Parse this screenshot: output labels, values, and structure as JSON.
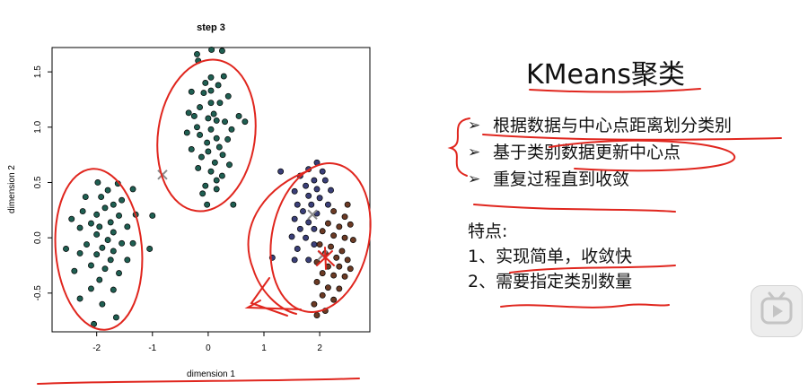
{
  "slide": {
    "title": "KMeans聚类",
    "bullets": [
      "根据数据与中心点距离划分类别",
      "基于类别数据更新中心点",
      "重复过程直到收敛"
    ],
    "bullet_marker": "➢",
    "features_heading": "特点:",
    "features": [
      "1、实现简单，收敛快",
      "2、需要指定类别数量"
    ]
  },
  "colors": {
    "cluster_1": "#1f5f52",
    "cluster_2": "#1f5f52",
    "cluster_3_blue": "#3a3f78",
    "cluster_3_brown": "#6b3a24",
    "annotation_red": "#e0261e",
    "centroid_mark": "#8a8a8a",
    "text": "#111111"
  },
  "player": {
    "icon": "play-icon"
  },
  "chart_data": {
    "type": "scatter",
    "title": "step 3",
    "xlabel": "dimension 1",
    "ylabel": "dimension 2",
    "xlim": [
      -2.8,
      2.9
    ],
    "ylim": [
      -0.85,
      1.72
    ],
    "xticks": [
      "-2",
      "-1",
      "0",
      "1",
      "2"
    ],
    "xtick_values": [
      -2,
      -1,
      0,
      1,
      2
    ],
    "yticks": [
      "-0.5",
      "0.0",
      "0.5",
      "1.0",
      "1.5"
    ],
    "ytick_values": [
      -0.5,
      0.0,
      0.5,
      1.0,
      1.5
    ],
    "grid": false,
    "centroid_marks": [
      {
        "x": -0.82,
        "y": 0.57
      },
      {
        "x": 1.87,
        "y": 0.21
      },
      {
        "x": 2.05,
        "y": -0.16
      }
    ],
    "series": [
      {
        "color_key": "cluster_1",
        "points": [
          [
            -0.2,
            1.66
          ],
          [
            0.06,
            1.7
          ],
          [
            0.25,
            1.69
          ],
          [
            -0.18,
            1.6
          ],
          [
            0.05,
            1.45
          ],
          [
            0.28,
            1.46
          ],
          [
            -0.05,
            1.4
          ],
          [
            0.18,
            1.38
          ],
          [
            0.05,
            1.33
          ],
          [
            -0.3,
            1.32
          ],
          [
            0.05,
            1.22
          ],
          [
            0.21,
            1.22
          ],
          [
            0.36,
            1.28
          ],
          [
            -0.15,
            1.18
          ],
          [
            0.1,
            1.12
          ],
          [
            0.55,
            1.1
          ],
          [
            0.66,
            1.05
          ],
          [
            -0.25,
            1.1
          ],
          [
            0.0,
            1.08
          ],
          [
            0.15,
            1.06
          ],
          [
            0.3,
            1.05
          ],
          [
            -0.2,
            1.0
          ],
          [
            0.05,
            0.98
          ],
          [
            0.42,
            0.98
          ],
          [
            -0.38,
            0.95
          ],
          [
            -0.15,
            0.93
          ],
          [
            0.15,
            0.9
          ],
          [
            0.35,
            0.89
          ],
          [
            -0.02,
            0.86
          ],
          [
            0.2,
            0.82
          ],
          [
            -0.3,
            0.8
          ],
          [
            0.0,
            0.78
          ],
          [
            0.26,
            0.75
          ],
          [
            -0.12,
            0.73
          ],
          [
            0.12,
            0.68
          ],
          [
            0.38,
            0.66
          ],
          [
            -0.18,
            0.63
          ],
          [
            0.05,
            0.6
          ],
          [
            0.25,
            0.56
          ],
          [
            0.15,
            0.52
          ],
          [
            -0.05,
            0.47
          ],
          [
            0.15,
            0.44
          ],
          [
            -0.1,
            0.4
          ],
          [
            -0.02,
            0.3
          ],
          [
            0.45,
            0.3
          ],
          [
            -0.35,
            1.13
          ],
          [
            -0.08,
            1.31
          ]
        ]
      },
      {
        "color_key": "cluster_2",
        "points": [
          [
            -1.98,
            0.5
          ],
          [
            -1.62,
            0.49
          ],
          [
            -1.8,
            0.43
          ],
          [
            -1.35,
            0.44
          ],
          [
            -1.92,
            0.37
          ],
          [
            -2.2,
            0.37
          ],
          [
            -1.55,
            0.34
          ],
          [
            -1.7,
            0.3
          ],
          [
            -1.85,
            0.27
          ],
          [
            -2.25,
            0.24
          ],
          [
            -2.0,
            0.21
          ],
          [
            -1.6,
            0.2
          ],
          [
            -1.3,
            0.21
          ],
          [
            -1.0,
            0.2
          ],
          [
            -2.45,
            0.17
          ],
          [
            -1.75,
            0.14
          ],
          [
            -2.1,
            0.13
          ],
          [
            -1.95,
            0.1
          ],
          [
            -1.45,
            0.1
          ],
          [
            -2.3,
            0.09
          ],
          [
            -1.7,
            0.05
          ],
          [
            -2.0,
            0.03
          ],
          [
            -1.8,
            -0.02
          ],
          [
            -1.55,
            -0.05
          ],
          [
            -2.18,
            -0.06
          ],
          [
            -1.35,
            -0.05
          ],
          [
            -1.9,
            -0.09
          ],
          [
            -2.55,
            -0.1
          ],
          [
            -1.7,
            -0.12
          ],
          [
            -2.3,
            -0.14
          ],
          [
            -2.0,
            -0.15
          ],
          [
            -1.75,
            -0.2
          ],
          [
            -1.45,
            -0.2
          ],
          [
            -2.1,
            -0.25
          ],
          [
            -1.85,
            -0.28
          ],
          [
            -2.4,
            -0.3
          ],
          [
            -1.6,
            -0.32
          ],
          [
            -1.95,
            -0.38
          ],
          [
            -2.1,
            -0.46
          ],
          [
            -1.7,
            -0.47
          ],
          [
            -2.3,
            -0.55
          ],
          [
            -1.9,
            -0.6
          ],
          [
            -1.65,
            -0.72
          ],
          [
            -2.05,
            -0.78
          ],
          [
            -1.05,
            -0.1
          ]
        ]
      },
      {
        "color_key": "cluster_3_blue",
        "points": [
          [
            1.95,
            0.68
          ],
          [
            1.8,
            0.62
          ],
          [
            2.05,
            0.6
          ],
          [
            1.65,
            0.56
          ],
          [
            1.9,
            0.52
          ],
          [
            2.1,
            0.52
          ],
          [
            1.75,
            0.47
          ],
          [
            1.95,
            0.44
          ],
          [
            1.55,
            0.42
          ],
          [
            2.2,
            0.43
          ],
          [
            1.8,
            0.38
          ],
          [
            2.0,
            0.36
          ],
          [
            1.6,
            0.3
          ],
          [
            1.85,
            0.3
          ],
          [
            2.15,
            0.3
          ],
          [
            1.7,
            0.24
          ],
          [
            1.95,
            0.22
          ],
          [
            1.55,
            0.17
          ],
          [
            1.8,
            0.14
          ],
          [
            1.65,
            0.08
          ],
          [
            1.9,
            0.08
          ],
          [
            1.5,
            0.01
          ],
          [
            1.75,
            0.0
          ],
          [
            1.9,
            -0.06
          ],
          [
            1.6,
            -0.1
          ],
          [
            1.55,
            -0.2
          ],
          [
            1.8,
            -0.2
          ],
          [
            1.15,
            -0.18
          ],
          [
            1.3,
            0.6
          ]
        ]
      },
      {
        "color_key": "cluster_3_brown",
        "points": [
          [
            2.5,
            0.3
          ],
          [
            2.25,
            0.24
          ],
          [
            2.45,
            0.19
          ],
          [
            2.15,
            0.13
          ],
          [
            2.35,
            0.1
          ],
          [
            2.55,
            0.12
          ],
          [
            2.05,
            0.06
          ],
          [
            2.25,
            0.02
          ],
          [
            2.45,
            0.0
          ],
          [
            2.6,
            -0.02
          ],
          [
            2.0,
            -0.06
          ],
          [
            2.2,
            -0.08
          ],
          [
            2.4,
            -0.12
          ],
          [
            2.1,
            -0.14
          ],
          [
            2.3,
            -0.18
          ],
          [
            2.5,
            -0.2
          ],
          [
            1.95,
            -0.22
          ],
          [
            2.15,
            -0.26
          ],
          [
            2.35,
            -0.26
          ],
          [
            2.55,
            -0.28
          ],
          [
            2.05,
            -0.32
          ],
          [
            2.25,
            -0.34
          ],
          [
            2.45,
            -0.35
          ],
          [
            1.95,
            -0.4
          ],
          [
            2.15,
            -0.45
          ],
          [
            2.35,
            -0.46
          ],
          [
            2.05,
            -0.52
          ],
          [
            2.25,
            -0.56
          ],
          [
            1.9,
            -0.6
          ],
          [
            2.1,
            -0.66
          ],
          [
            1.95,
            -0.7
          ]
        ]
      }
    ]
  }
}
